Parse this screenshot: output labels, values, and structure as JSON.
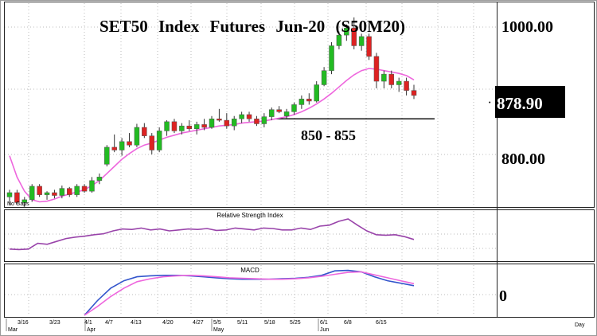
{
  "chart_data": [
    {
      "type": "candlestick",
      "title": "SET50  Index  Futures  Jun-20  (S50M20)",
      "y_ticks": [
        "1000.00",
        "800.00"
      ],
      "last_price": "878.90",
      "annotation": {
        "text": "850 - 855",
        "support_level": 852
      },
      "corner_note": "No Gaps",
      "ylim": [
        730,
        1015
      ],
      "colors": {
        "up": "#22bb22",
        "down": "#dd2222",
        "ma": "#ee66dd"
      },
      "candles": [
        {
          "o": 742,
          "h": 752,
          "l": 730,
          "c": 748
        },
        {
          "o": 748,
          "h": 752,
          "l": 732,
          "c": 734
        },
        {
          "o": 734,
          "h": 742,
          "l": 728,
          "c": 738
        },
        {
          "o": 738,
          "h": 760,
          "l": 735,
          "c": 757
        },
        {
          "o": 757,
          "h": 760,
          "l": 742,
          "c": 745
        },
        {
          "o": 745,
          "h": 750,
          "l": 738,
          "c": 748
        },
        {
          "o": 748,
          "h": 752,
          "l": 740,
          "c": 744
        },
        {
          "o": 744,
          "h": 758,
          "l": 740,
          "c": 754
        },
        {
          "o": 754,
          "h": 756,
          "l": 742,
          "c": 745
        },
        {
          "o": 745,
          "h": 760,
          "l": 742,
          "c": 757
        },
        {
          "o": 757,
          "h": 760,
          "l": 748,
          "c": 750
        },
        {
          "o": 750,
          "h": 770,
          "l": 748,
          "c": 765
        },
        {
          "o": 765,
          "h": 775,
          "l": 760,
          "c": 770
        },
        {
          "o": 788,
          "h": 815,
          "l": 785,
          "c": 812
        },
        {
          "o": 812,
          "h": 830,
          "l": 805,
          "c": 808
        },
        {
          "o": 808,
          "h": 825,
          "l": 800,
          "c": 820
        },
        {
          "o": 820,
          "h": 832,
          "l": 812,
          "c": 815
        },
        {
          "o": 815,
          "h": 845,
          "l": 812,
          "c": 840
        },
        {
          "o": 840,
          "h": 846,
          "l": 825,
          "c": 828
        },
        {
          "o": 828,
          "h": 832,
          "l": 802,
          "c": 808
        },
        {
          "o": 808,
          "h": 840,
          "l": 805,
          "c": 835
        },
        {
          "o": 835,
          "h": 850,
          "l": 828,
          "c": 848
        },
        {
          "o": 848,
          "h": 852,
          "l": 832,
          "c": 835
        },
        {
          "o": 835,
          "h": 846,
          "l": 830,
          "c": 842
        },
        {
          "o": 842,
          "h": 850,
          "l": 835,
          "c": 838
        },
        {
          "o": 838,
          "h": 848,
          "l": 830,
          "c": 844
        },
        {
          "o": 844,
          "h": 852,
          "l": 836,
          "c": 840
        },
        {
          "o": 840,
          "h": 856,
          "l": 838,
          "c": 852
        },
        {
          "o": 852,
          "h": 866,
          "l": 848,
          "c": 850
        },
        {
          "o": 850,
          "h": 860,
          "l": 838,
          "c": 842
        },
        {
          "o": 842,
          "h": 856,
          "l": 836,
          "c": 852
        },
        {
          "o": 852,
          "h": 862,
          "l": 846,
          "c": 858
        },
        {
          "o": 858,
          "h": 862,
          "l": 848,
          "c": 852
        },
        {
          "o": 852,
          "h": 856,
          "l": 842,
          "c": 845
        },
        {
          "o": 845,
          "h": 860,
          "l": 840,
          "c": 855
        },
        {
          "o": 855,
          "h": 868,
          "l": 850,
          "c": 865
        },
        {
          "o": 865,
          "h": 870,
          "l": 860,
          "c": 862
        },
        {
          "o": 856,
          "h": 866,
          "l": 852,
          "c": 862
        },
        {
          "o": 862,
          "h": 875,
          "l": 858,
          "c": 872
        },
        {
          "o": 872,
          "h": 885,
          "l": 866,
          "c": 880
        },
        {
          "o": 880,
          "h": 888,
          "l": 872,
          "c": 877
        },
        {
          "o": 877,
          "h": 905,
          "l": 875,
          "c": 900
        },
        {
          "o": 900,
          "h": 925,
          "l": 898,
          "c": 920
        },
        {
          "o": 920,
          "h": 960,
          "l": 915,
          "c": 955
        },
        {
          "o": 955,
          "h": 975,
          "l": 950,
          "c": 970
        },
        {
          "o": 970,
          "h": 985,
          "l": 962,
          "c": 980
        },
        {
          "o": 980,
          "h": 995,
          "l": 950,
          "c": 955
        },
        {
          "o": 955,
          "h": 972,
          "l": 948,
          "c": 968
        },
        {
          "o": 968,
          "h": 972,
          "l": 935,
          "c": 940
        },
        {
          "o": 940,
          "h": 945,
          "l": 895,
          "c": 905
        },
        {
          "o": 905,
          "h": 920,
          "l": 895,
          "c": 915
        },
        {
          "o": 915,
          "h": 920,
          "l": 895,
          "c": 900
        },
        {
          "o": 900,
          "h": 910,
          "l": 890,
          "c": 905
        },
        {
          "o": 905,
          "h": 910,
          "l": 885,
          "c": 892
        },
        {
          "o": 892,
          "h": 900,
          "l": 880,
          "c": 885
        }
      ],
      "ma": [
        800,
        770,
        750,
        738,
        735,
        736,
        739,
        743,
        746,
        749,
        752,
        758,
        765,
        775,
        785,
        795,
        803,
        810,
        815,
        818,
        822,
        826,
        829,
        832,
        834,
        836,
        838,
        840,
        842,
        843,
        844,
        846,
        847,
        848,
        849,
        851,
        853,
        855,
        858,
        862,
        867,
        873,
        880,
        888,
        897,
        906,
        914,
        920,
        923,
        922,
        920,
        918,
        916,
        913,
        907
      ]
    },
    {
      "type": "line",
      "title": "Relative Strength Index",
      "ylim": [
        0,
        100
      ],
      "series": [
        {
          "values": [
            22,
            21,
            22,
            34,
            32,
            38,
            44,
            47,
            49,
            52,
            54,
            60,
            64,
            63,
            66,
            62,
            64,
            60,
            62,
            64,
            63,
            65,
            61,
            62,
            66,
            64,
            62,
            66,
            65,
            62,
            62,
            66,
            63,
            70,
            72,
            80,
            85,
            72,
            60,
            52,
            51,
            52,
            48,
            42
          ]
        }
      ]
    },
    {
      "type": "line",
      "title": "MACD",
      "y_ticks": [
        "0"
      ],
      "ylim": [
        -60,
        40
      ],
      "series": [
        {
          "values": [
            -60,
            -30,
            -5,
            10,
            18,
            20,
            21,
            21,
            20,
            18,
            16,
            14,
            13,
            13,
            13,
            14,
            15,
            17,
            21,
            30,
            31,
            28,
            18,
            10,
            5,
            0
          ]
        },
        {
          "values": [
            -60,
            -42,
            -22,
            -5,
            8,
            14,
            18,
            20,
            21,
            20,
            18,
            16,
            15,
            14,
            13,
            13,
            14,
            16,
            19,
            23,
            27,
            28,
            22,
            16,
            10,
            4
          ]
        }
      ]
    }
  ],
  "x_axis": {
    "dates": [
      "3/16",
      "3/23",
      "4/1",
      "4/7",
      "4/13",
      "4/20",
      "4/27",
      "5/5",
      "5/11",
      "5/18",
      "5/25",
      "6/1",
      "6/8",
      "6/15"
    ],
    "months": [
      "Mar",
      "Apr",
      "May",
      "Jun"
    ],
    "unit": "Day"
  }
}
